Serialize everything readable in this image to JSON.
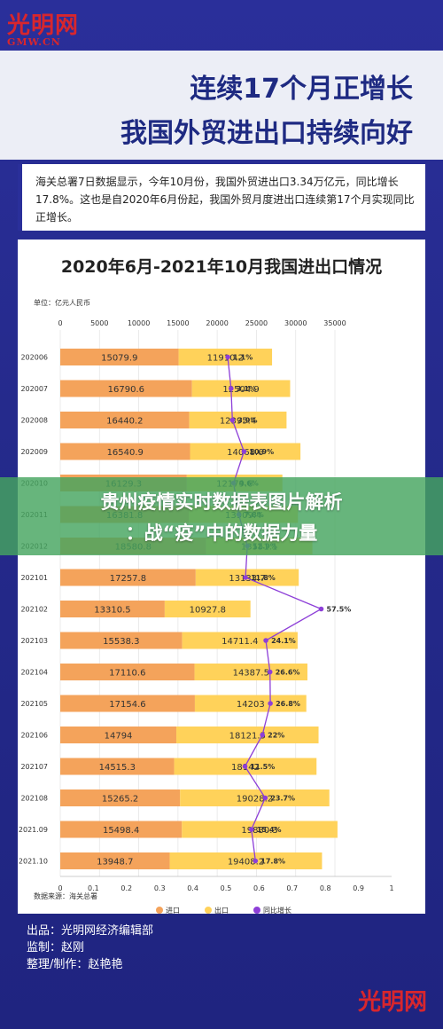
{
  "logo": "光明网",
  "logo_sub": "GMW.CN",
  "title": {
    "line1": "连续17个月正增长",
    "line2": "我国外贸进出口持续向好"
  },
  "lead": "海关总署7日数据显示，今年10月份，我国外贸进出口3.34万亿元，同比增长17.8%。这也是自2020年6月份起，我国外贸月度进出口连续第17个月实现同比正增长。",
  "banner": {
    "line1": "贵州疫情实时数据表图片解析",
    "line2": "：战“疫”中的数据力量"
  },
  "credits": {
    "line1": "出品：光明网经济编辑部",
    "line2": "监制：赵刚",
    "line3": "整理/制作：赵艳艳"
  },
  "colors": {
    "import": "#f4a35b",
    "export": "#ffd25a",
    "growth": "#8d3fd8",
    "title": "#1e2a82",
    "background": "#2a2f9a"
  },
  "chart_data": {
    "type": "bar",
    "stacked": true,
    "orientation": "horizontal",
    "title": "2020年6月-2021年10月我国进出口情况",
    "unit": "单位：亿元人民币",
    "source": "数据来源：海关总署",
    "categories": [
      "202006",
      "202007",
      "202008",
      "202009",
      "202010",
      "202011",
      "202012",
      "202101",
      "202102",
      "202103",
      "202104",
      "202105",
      "202106",
      "202107",
      "202108",
      "2021.09",
      "2021.10"
    ],
    "xlim": [
      0,
      35000
    ],
    "xticks": [
      "0",
      "5000",
      "10000",
      "15000",
      "20000",
      "25000",
      "30000",
      "35000"
    ],
    "growth_axis": {
      "xlim": [
        0,
        1
      ],
      "ticks": [
        "0",
        "0.1",
        "0.2",
        "0.3",
        "0.4",
        "0.5",
        "0.6",
        "0.7",
        "0.8",
        "0.9",
        "1"
      ]
    },
    "series": [
      {
        "name": "进口",
        "values": [
          "15079.9",
          "16790.6",
          "16440.2",
          "16540.9",
          "16129.3",
          "16381.8",
          "18580.8",
          "17257.8",
          "13310.5",
          "15538.3",
          "17110.6",
          "17154.6",
          "14794",
          "14515.3",
          "15265.2",
          "15498.4",
          "13948.7"
        ]
      },
      {
        "name": "出口",
        "values": [
          "11910.2",
          "12504.9",
          "12395.4",
          "14068.6",
          "12179.6",
          "13909.4",
          "13551.1",
          "13133.7",
          "10927.8",
          "14711.4",
          "14387.5",
          "14203",
          "18121.5",
          "18142",
          "19028.2",
          "19830.3",
          "19408.2"
        ]
      },
      {
        "name": "同比增长",
        "values": [
          0.011,
          0.031,
          0.039,
          0.109,
          0.046,
          0.078,
          0.129,
          0.118,
          0.575,
          0.241,
          0.266,
          0.268,
          0.22,
          0.115,
          0.237,
          0.154,
          0.178
        ],
        "labels": [
          "1.1%",
          "3.1%",
          "3.9%",
          "10.9%",
          "4.6%",
          "7.8%",
          "12.9%",
          "11.8%",
          "57.5%",
          "24.1%",
          "26.6%",
          "26.8%",
          "22%",
          "11.5%",
          "23.7%",
          "15.4%",
          "17.8%"
        ]
      }
    ],
    "legend": "bottom"
  }
}
